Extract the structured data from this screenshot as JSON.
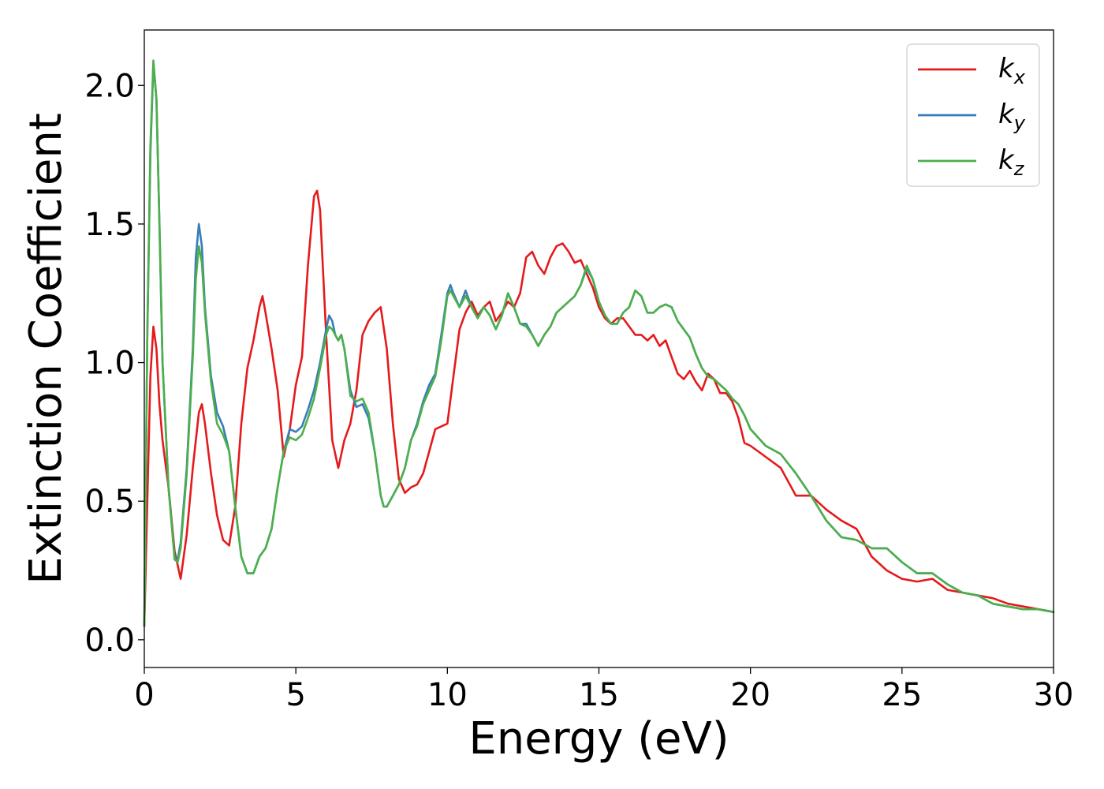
{
  "chart_data": {
    "type": "line",
    "title": "",
    "xlabel": "Energy (eV)",
    "ylabel": "Extinction Coefficient",
    "xlim": [
      0,
      30
    ],
    "ylim": [
      -0.1,
      2.2
    ],
    "xticks": [
      "0",
      "5",
      "10",
      "15",
      "20",
      "25",
      "30"
    ],
    "yticks": [
      "0.0",
      "0.5",
      "1.0",
      "1.5",
      "2.0"
    ],
    "grid": false,
    "legend_position": "top-right",
    "series": [
      {
        "name": "k_x",
        "label_base": "k",
        "label_sub": "x",
        "color": "#e41a1c",
        "x": [
          0,
          0.1,
          0.2,
          0.3,
          0.4,
          0.5,
          0.6,
          0.8,
          1.0,
          1.2,
          1.4,
          1.6,
          1.8,
          1.9,
          2.0,
          2.2,
          2.4,
          2.6,
          2.8,
          3.0,
          3.2,
          3.4,
          3.6,
          3.8,
          3.9,
          4.0,
          4.2,
          4.4,
          4.6,
          4.8,
          5.0,
          5.2,
          5.4,
          5.6,
          5.7,
          5.8,
          6.0,
          6.2,
          6.4,
          6.6,
          6.8,
          7.0,
          7.2,
          7.4,
          7.6,
          7.8,
          8.0,
          8.2,
          8.4,
          8.6,
          8.8,
          9.0,
          9.2,
          9.4,
          9.6,
          9.8,
          10.0,
          10.2,
          10.4,
          10.6,
          10.8,
          11.0,
          11.2,
          11.4,
          11.6,
          11.8,
          12.0,
          12.2,
          12.4,
          12.6,
          12.8,
          13.0,
          13.2,
          13.4,
          13.6,
          13.8,
          14.0,
          14.2,
          14.4,
          14.6,
          14.8,
          15.0,
          15.2,
          15.4,
          15.6,
          15.8,
          16.0,
          16.2,
          16.4,
          16.6,
          16.8,
          17.0,
          17.2,
          17.4,
          17.6,
          17.8,
          18.0,
          18.2,
          18.4,
          18.6,
          18.8,
          19.0,
          19.2,
          19.4,
          19.6,
          19.8,
          20.0,
          20.5,
          21.0,
          21.5,
          22.0,
          22.5,
          23.0,
          23.5,
          24.0,
          24.5,
          25.0,
          25.5,
          26.0,
          26.5,
          27.0,
          27.5,
          28.0,
          28.5,
          29.0,
          29.5,
          30.0
        ],
        "y": [
          0.05,
          0.5,
          0.95,
          1.13,
          1.05,
          0.85,
          0.72,
          0.55,
          0.32,
          0.22,
          0.38,
          0.62,
          0.82,
          0.85,
          0.78,
          0.6,
          0.45,
          0.36,
          0.34,
          0.48,
          0.78,
          0.98,
          1.08,
          1.2,
          1.24,
          1.18,
          1.05,
          0.9,
          0.66,
          0.76,
          0.92,
          1.02,
          1.35,
          1.6,
          1.62,
          1.55,
          1.1,
          0.72,
          0.62,
          0.72,
          0.78,
          0.9,
          1.1,
          1.15,
          1.18,
          1.2,
          1.05,
          0.78,
          0.58,
          0.53,
          0.55,
          0.56,
          0.6,
          0.68,
          0.76,
          0.77,
          0.78,
          0.95,
          1.12,
          1.18,
          1.22,
          1.17,
          1.2,
          1.22,
          1.15,
          1.18,
          1.22,
          1.2,
          1.25,
          1.38,
          1.4,
          1.35,
          1.32,
          1.38,
          1.42,
          1.43,
          1.4,
          1.36,
          1.37,
          1.32,
          1.27,
          1.2,
          1.16,
          1.14,
          1.16,
          1.16,
          1.13,
          1.1,
          1.1,
          1.08,
          1.1,
          1.06,
          1.08,
          1.02,
          0.96,
          0.94,
          0.97,
          0.93,
          0.9,
          0.96,
          0.94,
          0.89,
          0.89,
          0.86,
          0.8,
          0.71,
          0.7,
          0.66,
          0.62,
          0.52,
          0.52,
          0.47,
          0.43,
          0.4,
          0.3,
          0.25,
          0.22,
          0.21,
          0.22,
          0.18,
          0.17,
          0.16,
          0.15,
          0.13,
          0.12,
          0.11,
          0.1
        ]
      },
      {
        "name": "k_y",
        "label_base": "k",
        "label_sub": "y",
        "color": "#377eb8",
        "x": [
          0,
          0.1,
          0.2,
          0.3,
          0.4,
          0.5,
          0.6,
          0.8,
          1.0,
          1.1,
          1.2,
          1.4,
          1.6,
          1.7,
          1.8,
          1.9,
          2.0,
          2.2,
          2.4,
          2.6,
          2.8,
          3.0,
          3.2,
          3.4,
          3.6,
          3.8,
          4.0,
          4.2,
          4.4,
          4.6,
          4.8,
          5.0,
          5.2,
          5.4,
          5.6,
          5.8,
          6.0,
          6.1,
          6.2,
          6.3,
          6.4,
          6.5,
          6.6,
          6.8,
          7.0,
          7.2,
          7.4,
          7.6,
          7.8,
          7.9,
          8.0,
          8.2,
          8.4,
          8.6,
          8.8,
          9.0,
          9.2,
          9.4,
          9.6,
          9.8,
          10.0,
          10.1,
          10.2,
          10.4,
          10.6,
          10.8,
          11.0,
          11.2,
          11.4,
          11.6,
          11.8,
          12.0,
          12.2,
          12.4,
          12.6,
          12.8,
          13.0,
          13.2,
          13.4,
          13.6,
          13.8,
          14.0,
          14.2,
          14.4,
          14.6,
          14.8,
          15.0,
          15.2,
          15.4,
          15.6,
          15.8,
          16.0,
          16.2,
          16.4,
          16.6,
          16.8,
          17.0,
          17.2,
          17.4,
          17.6,
          17.8,
          18.0,
          18.2,
          18.4,
          18.6,
          18.8,
          19.0,
          19.2,
          19.4,
          19.6,
          19.8,
          20.0,
          20.5,
          21.0,
          21.5,
          22.0,
          22.5,
          23.0,
          23.5,
          24.0,
          24.5,
          25.0,
          25.5,
          26.0,
          26.5,
          27.0,
          27.5,
          28.0,
          28.5,
          29.0,
          29.5,
          30.0
        ],
        "y": [
          0.05,
          1.1,
          1.75,
          2.08,
          1.95,
          1.5,
          1.0,
          0.55,
          0.3,
          0.29,
          0.35,
          0.62,
          1.05,
          1.38,
          1.5,
          1.42,
          1.2,
          0.95,
          0.82,
          0.77,
          0.68,
          0.48,
          0.3,
          0.24,
          0.24,
          0.3,
          0.33,
          0.4,
          0.55,
          0.68,
          0.76,
          0.75,
          0.77,
          0.83,
          0.9,
          1.0,
          1.12,
          1.17,
          1.15,
          1.1,
          1.08,
          1.1,
          1.05,
          0.9,
          0.84,
          0.85,
          0.8,
          0.68,
          0.52,
          0.48,
          0.48,
          0.52,
          0.56,
          0.62,
          0.72,
          0.78,
          0.86,
          0.92,
          0.96,
          1.1,
          1.25,
          1.28,
          1.25,
          1.2,
          1.26,
          1.2,
          1.16,
          1.2,
          1.17,
          1.12,
          1.17,
          1.25,
          1.2,
          1.14,
          1.14,
          1.1,
          1.06,
          1.1,
          1.13,
          1.18,
          1.2,
          1.22,
          1.24,
          1.28,
          1.34,
          1.3,
          1.22,
          1.17,
          1.14,
          1.14,
          1.18,
          1.2,
          1.26,
          1.24,
          1.18,
          1.18,
          1.2,
          1.21,
          1.2,
          1.15,
          1.12,
          1.09,
          1.03,
          0.98,
          0.95,
          0.94,
          0.92,
          0.9,
          0.87,
          0.85,
          0.81,
          0.76,
          0.7,
          0.67,
          0.6,
          0.52,
          0.43,
          0.37,
          0.36,
          0.33,
          0.33,
          0.28,
          0.24,
          0.24,
          0.2,
          0.17,
          0.16,
          0.13,
          0.12,
          0.11,
          0.11,
          0.1
        ]
      },
      {
        "name": "k_z",
        "label_base": "k",
        "label_sub": "z",
        "color": "#4daf4a",
        "x": [
          0,
          0.1,
          0.2,
          0.3,
          0.4,
          0.5,
          0.6,
          0.8,
          1.0,
          1.1,
          1.2,
          1.4,
          1.6,
          1.7,
          1.8,
          1.9,
          2.0,
          2.2,
          2.4,
          2.6,
          2.8,
          3.0,
          3.2,
          3.4,
          3.6,
          3.8,
          4.0,
          4.2,
          4.4,
          4.6,
          4.8,
          5.0,
          5.2,
          5.4,
          5.6,
          5.8,
          6.0,
          6.1,
          6.2,
          6.3,
          6.4,
          6.5,
          6.6,
          6.8,
          7.0,
          7.2,
          7.4,
          7.6,
          7.8,
          7.9,
          8.0,
          8.2,
          8.4,
          8.6,
          8.8,
          9.0,
          9.2,
          9.4,
          9.6,
          9.8,
          10.0,
          10.1,
          10.2,
          10.4,
          10.6,
          10.8,
          11.0,
          11.2,
          11.4,
          11.6,
          11.8,
          12.0,
          12.2,
          12.4,
          12.6,
          12.8,
          13.0,
          13.2,
          13.4,
          13.6,
          13.8,
          14.0,
          14.2,
          14.4,
          14.6,
          14.8,
          15.0,
          15.2,
          15.4,
          15.6,
          15.8,
          16.0,
          16.2,
          16.4,
          16.6,
          16.8,
          17.0,
          17.2,
          17.4,
          17.6,
          17.8,
          18.0,
          18.2,
          18.4,
          18.6,
          18.8,
          19.0,
          19.2,
          19.4,
          19.6,
          19.8,
          20.0,
          20.5,
          21.0,
          21.5,
          22.0,
          22.5,
          23.0,
          23.5,
          24.0,
          24.5,
          25.0,
          25.5,
          26.0,
          26.5,
          27.0,
          27.5,
          28.0,
          28.5,
          29.0,
          29.5,
          30.0
        ],
        "y": [
          0.05,
          1.1,
          1.78,
          2.09,
          1.95,
          1.5,
          1.0,
          0.55,
          0.29,
          0.28,
          0.33,
          0.6,
          1.02,
          1.3,
          1.42,
          1.36,
          1.18,
          0.93,
          0.78,
          0.74,
          0.68,
          0.48,
          0.3,
          0.24,
          0.24,
          0.3,
          0.33,
          0.4,
          0.55,
          0.68,
          0.73,
          0.72,
          0.74,
          0.8,
          0.87,
          0.98,
          1.1,
          1.13,
          1.12,
          1.1,
          1.08,
          1.1,
          1.05,
          0.88,
          0.86,
          0.87,
          0.82,
          0.68,
          0.52,
          0.48,
          0.48,
          0.52,
          0.56,
          0.62,
          0.72,
          0.77,
          0.85,
          0.9,
          0.95,
          1.08,
          1.24,
          1.26,
          1.24,
          1.2,
          1.24,
          1.2,
          1.16,
          1.2,
          1.17,
          1.12,
          1.17,
          1.25,
          1.2,
          1.14,
          1.13,
          1.1,
          1.06,
          1.1,
          1.13,
          1.18,
          1.2,
          1.22,
          1.24,
          1.28,
          1.35,
          1.3,
          1.22,
          1.17,
          1.14,
          1.14,
          1.18,
          1.2,
          1.26,
          1.24,
          1.18,
          1.18,
          1.2,
          1.21,
          1.2,
          1.15,
          1.12,
          1.09,
          1.03,
          0.98,
          0.95,
          0.94,
          0.92,
          0.9,
          0.87,
          0.85,
          0.81,
          0.76,
          0.7,
          0.67,
          0.6,
          0.52,
          0.43,
          0.37,
          0.36,
          0.33,
          0.33,
          0.28,
          0.24,
          0.24,
          0.2,
          0.17,
          0.16,
          0.13,
          0.12,
          0.11,
          0.11,
          0.1
        ]
      }
    ]
  }
}
